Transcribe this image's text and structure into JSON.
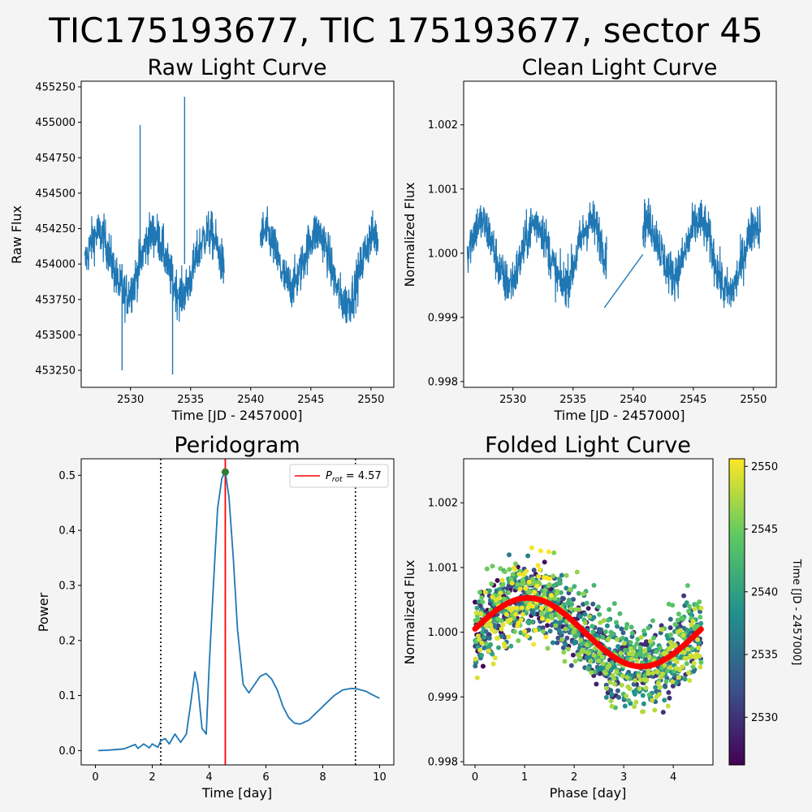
{
  "figure": {
    "suptitle": "TIC175193677, TIC 175193677, sector 45",
    "background": "#f4f4f4",
    "line_color": "#1f77b4",
    "fit_color": "#ff0000"
  },
  "chart_data": [
    {
      "id": "raw",
      "type": "line",
      "title": "Raw Light Curve",
      "xlabel": "Time [JD - 2457000]",
      "ylabel": "Raw Flux",
      "xlim": [
        2525.9,
        2551.9
      ],
      "ylim": [
        453130,
        455290
      ],
      "xticks": [
        2530,
        2535,
        2540,
        2545,
        2550
      ],
      "yticks": [
        453250,
        453500,
        453750,
        454000,
        454250,
        454500,
        454750,
        455000,
        455250
      ],
      "segments": [
        [
          2526.2,
          2537.8
        ],
        [
          2540.8,
          2550.6
        ]
      ],
      "gap": [
        2537.8,
        2540.8
      ],
      "approx_baseline": 454000,
      "approx_amplitude": 300,
      "spikes": [
        {
          "x": 2530.8,
          "y": 454980
        },
        {
          "x": 2534.5,
          "y": 455180
        },
        {
          "x": 2533.5,
          "y": 453220
        },
        {
          "x": 2529.3,
          "y": 453250
        }
      ]
    },
    {
      "id": "clean",
      "type": "line",
      "title": "Clean Light Curve",
      "xlabel": "Time [JD - 2457000]",
      "ylabel": "Normalized Flux",
      "xlim": [
        2525.9,
        2551.9
      ],
      "ylim": [
        0.99791,
        1.00268
      ],
      "xticks": [
        2530,
        2535,
        2540,
        2545,
        2550
      ],
      "yticks": [
        0.998,
        0.999,
        1.0,
        1.001,
        1.002
      ],
      "ytick_labels": [
        "0.998",
        "0.999",
        "1.000",
        "1.001",
        "1.002"
      ],
      "approx_amplitude": 0.00066,
      "connector": [
        [
          2537.6,
          0.99915
        ],
        [
          2540.8,
          0.99998
        ]
      ]
    },
    {
      "id": "periodogram",
      "type": "line",
      "title": "Peridogram",
      "xlabel": "Time [day]",
      "ylabel": "Power",
      "xlim": [
        -0.5,
        10.5
      ],
      "ylim": [
        -0.026,
        0.53
      ],
      "xticks": [
        0,
        2,
        4,
        6,
        8,
        10
      ],
      "yticks": [
        0.0,
        0.1,
        0.2,
        0.3,
        0.4,
        0.5
      ],
      "ytick_labels": [
        "0.0",
        "0.1",
        "0.2",
        "0.3",
        "0.4",
        "0.5"
      ],
      "series": [
        {
          "x": [
            0.1,
            0.5,
            1.0,
            1.4,
            1.5,
            1.7,
            1.9,
            2.0,
            2.2,
            2.3,
            2.45,
            2.6,
            2.8,
            3.0,
            3.2,
            3.35,
            3.5,
            3.6,
            3.75,
            3.9,
            4.0,
            4.15,
            4.3,
            4.45,
            4.57,
            4.7,
            4.85,
            5.0,
            5.2,
            5.4,
            5.6,
            5.8,
            6.0,
            6.2,
            6.4,
            6.6,
            6.8,
            7.0,
            7.2,
            7.5,
            7.8,
            8.1,
            8.4,
            8.7,
            9.0,
            9.2,
            9.5,
            9.8,
            10.0
          ],
          "y": [
            0.0,
            0.001,
            0.003,
            0.011,
            0.004,
            0.012,
            0.005,
            0.012,
            0.006,
            0.018,
            0.022,
            0.012,
            0.03,
            0.015,
            0.03,
            0.085,
            0.143,
            0.12,
            0.04,
            0.03,
            0.15,
            0.3,
            0.44,
            0.495,
            0.506,
            0.46,
            0.35,
            0.22,
            0.12,
            0.105,
            0.12,
            0.135,
            0.14,
            0.13,
            0.11,
            0.08,
            0.06,
            0.05,
            0.048,
            0.055,
            0.07,
            0.085,
            0.1,
            0.11,
            0.113,
            0.112,
            0.108,
            0.1,
            0.095
          ]
        }
      ],
      "vlines": [
        {
          "x": 2.3,
          "style": "dotted",
          "color": "#000000"
        },
        {
          "x": 9.15,
          "style": "dotted",
          "color": "#000000"
        },
        {
          "x": 4.57,
          "style": "solid",
          "color": "#ff0000"
        }
      ],
      "peak": {
        "x": 4.57,
        "y": 0.506,
        "color": "#2e7d32"
      },
      "legend": {
        "label_prefix": "P",
        "label_sub": "rot",
        "label_rest": " = 4.57",
        "placement": "upper right"
      }
    },
    {
      "id": "folded",
      "type": "scatter",
      "title": "Folded Light Curve",
      "xlabel": "Phase [day]",
      "ylabel": "Normalized Flux",
      "xlim": [
        -0.23,
        4.8
      ],
      "ylim": [
        0.99795,
        1.00268
      ],
      "xticks": [
        0,
        1,
        2,
        3,
        4
      ],
      "yticks": [
        0.998,
        0.999,
        1.0,
        1.001,
        1.002
      ],
      "ytick_labels": [
        "0.998",
        "0.999",
        "1.000",
        "1.001",
        "1.002"
      ],
      "period": 4.57,
      "fit": {
        "mean": 1.0,
        "amplitude": 0.00053,
        "peak_phase": 1.07
      },
      "colorbar": {
        "label": "Time [JD - 2457000]",
        "range": [
          2526.2,
          2550.6
        ],
        "ticks": [
          2530,
          2535,
          2540,
          2545,
          2550
        ],
        "colormap": "viridis"
      }
    }
  ]
}
